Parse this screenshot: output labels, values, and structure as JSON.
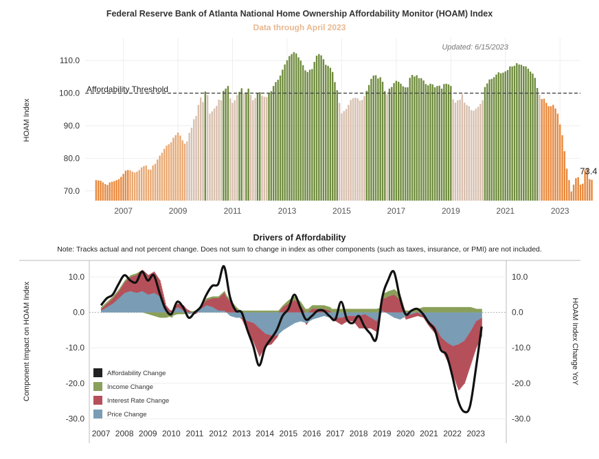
{
  "page": {
    "title": "Federal Reserve Bank of Atlanta National Home Ownership Affordability Monitor (HOAM) Index",
    "subtitle": "Data through April 2023"
  },
  "colors": {
    "title_sub": "#e8b890",
    "affordable_green": "#6e8b3d",
    "unaffordable_tan": "#d7bfae",
    "light_orange": "#e8a872",
    "orange": "#e8873a",
    "income": "#8aa05a",
    "interest": "#b5505a",
    "price": "#7a9cb5",
    "afford_line": "#111111"
  },
  "chart_data": [
    {
      "type": "bar",
      "name": "hoam",
      "note": "Updated: 6/15/2023",
      "ylabel": "HOAM Index",
      "ylim": [
        67,
        117
      ],
      "yticks": [
        70.0,
        80.0,
        90.0,
        100.0,
        110.0
      ],
      "ytick_labels": [
        "70.0",
        "80.0",
        "90.0",
        "100.0",
        "110.0"
      ],
      "x_start": 2006.0,
      "x_step": 0.0833333,
      "x_range": [
        2005.6,
        2023.75
      ],
      "xtick_labels": [
        "2007",
        "2009",
        "2011",
        "2013",
        "2015",
        "2017",
        "2019",
        "2021",
        "2023"
      ],
      "xticks": [
        2007,
        2009,
        2011,
        2013,
        2015,
        2017,
        2019,
        2021,
        2023
      ],
      "threshold": 100.0,
      "threshold_label": "Affordability Threshold",
      "last_value_label": "73.4",
      "values": [
        73.3,
        73.2,
        73.1,
        72.6,
        72.1,
        71.8,
        72.6,
        72.8,
        73.0,
        73.3,
        73.6,
        74.3,
        75.2,
        76.2,
        76.4,
        76.3,
        75.9,
        75.6,
        75.9,
        76.4,
        77.2,
        77.6,
        77.8,
        76.6,
        76.5,
        77.8,
        78.3,
        79.6,
        80.8,
        81.7,
        82.9,
        83.9,
        84.3,
        84.9,
        86.3,
        87.1,
        87.9,
        87.0,
        85.5,
        84.5,
        85.2,
        87.8,
        89.4,
        92.0,
        93.0,
        96.4,
        98.7,
        97.3,
        100.5,
        99.4,
        93.7,
        94.4,
        95.3,
        96.1,
        98.0,
        97.8,
        100.7,
        101.4,
        102.2,
        98.4,
        97.0,
        97.8,
        99.4,
        100.4,
        101.5,
        99.9,
        100.2,
        101.4,
        99.5,
        97.8,
        98.5,
        100.0,
        100.3,
        99.2,
        98.9,
        98.8,
        100.0,
        100.6,
        102.2,
        103.4,
        104.1,
        105.4,
        107.2,
        108.8,
        110.1,
        111.4,
        112.0,
        112.6,
        112.2,
        111.0,
        110.0,
        108.6,
        107.0,
        106.5,
        107.2,
        107.4,
        109.6,
        111.5,
        112.0,
        111.6,
        110.4,
        108.7,
        108.4,
        107.8,
        106.5,
        103.4,
        100.9,
        97.0,
        93.8,
        94.5,
        95.1,
        96.4,
        97.9,
        98.4,
        98.6,
        98.4,
        97.7,
        97.9,
        99.1,
        100.7,
        102.5,
        104.4,
        105.4,
        105.5,
        104.5,
        104.9,
        103.5,
        100.6,
        99.6,
        101.4,
        101.9,
        103.1,
        103.8,
        103.5,
        102.9,
        102.1,
        101.8,
        101.8,
        104.7,
        105.6,
        105.1,
        105.5,
        104.6,
        104.6,
        103.9,
        102.8,
        102.4,
        102.9,
        102.7,
        101.8,
        102.2,
        102.3,
        101.4,
        102.8,
        102.9,
        102.7,
        102.2,
        98.1,
        97.1,
        97.8,
        98.0,
        99.6,
        97.1,
        96.4,
        96.0,
        94.8,
        94.6,
        95.2,
        95.8,
        96.7,
        97.8,
        101.9,
        103.0,
        104.2,
        104.4,
        104.9,
        105.7,
        106.4,
        106.1,
        106.3,
        106.7,
        107.1,
        108.2,
        108.2,
        108.4,
        109.2,
        108.8,
        108.7,
        108.3,
        108.2,
        107.5,
        106.6,
        106.0,
        104.7,
        101.6,
        99.5,
        98.2,
        98.3,
        97.0,
        96.0,
        96.0,
        96.4,
        95.3,
        93.7,
        90.4,
        87.1,
        82.2,
        76.8,
        73.3,
        69.8,
        71.9,
        73.9,
        74.2,
        71.9,
        72.2,
        76.4,
        76.9,
        73.6,
        73.4
      ]
    },
    {
      "type": "area",
      "name": "drivers",
      "title": "Drivers of Affordability",
      "note": "Note: Tracks actual and not percent change. Does not sum to change in index as other components (such as taxes, insurance, or PMI) are not included.",
      "ylabel": "Component Impact on HOAM Index",
      "ylabel_right": "HOAM Index Change YoY",
      "ylim": [
        -30.5,
        13.5
      ],
      "yticks": [
        -30.0,
        -20.0,
        -10.0,
        0.0,
        10.0
      ],
      "ytick_labels": [
        "-30.0",
        "-20.0",
        "-10.0",
        "0.0",
        "10.0"
      ],
      "x_range": [
        2006.5,
        2024.3
      ],
      "xtick_labels": [
        "2007",
        "2008",
        "2009",
        "2010",
        "2011",
        "2012",
        "2013",
        "2014",
        "2015",
        "2016",
        "2017",
        "2018",
        "2019",
        "2020",
        "2021",
        "2022",
        "2023"
      ],
      "xticks": [
        2007,
        2008,
        2009,
        2010,
        2011,
        2012,
        2013,
        2014,
        2015,
        2016,
        2017,
        2018,
        2019,
        2020,
        2021,
        2022,
        2023
      ],
      "legend": [
        {
          "label": "Affordability Change",
          "color": "#222222"
        },
        {
          "label": "Income Change",
          "color": "#8aa05a"
        },
        {
          "label": "Interest Rate Change",
          "color": "#b5505a"
        },
        {
          "label": "Price Change",
          "color": "#7a9cb5"
        }
      ],
      "legend_position": "bottom-left",
      "x": [
        2007.0,
        2007.25,
        2007.5,
        2007.75,
        2008.0,
        2008.25,
        2008.5,
        2008.75,
        2009.0,
        2009.25,
        2009.5,
        2009.75,
        2010.0,
        2010.25,
        2010.5,
        2010.75,
        2011.0,
        2011.25,
        2011.5,
        2011.75,
        2012.0,
        2012.25,
        2012.5,
        2012.75,
        2013.0,
        2013.25,
        2013.5,
        2013.75,
        2014.0,
        2014.25,
        2014.5,
        2014.75,
        2015.0,
        2015.25,
        2015.5,
        2015.75,
        2016.0,
        2016.25,
        2016.5,
        2016.75,
        2017.0,
        2017.25,
        2017.5,
        2017.75,
        2018.0,
        2018.25,
        2018.5,
        2018.75,
        2019.0,
        2019.25,
        2019.5,
        2019.75,
        2020.0,
        2020.25,
        2020.5,
        2020.75,
        2021.0,
        2021.25,
        2021.5,
        2021.75,
        2022.0,
        2022.25,
        2022.5,
        2022.75,
        2023.0,
        2023.25
      ],
      "series": [
        {
          "name": "Price Change",
          "values": [
            0.5,
            1.5,
            2.5,
            4.0,
            5.5,
            6.0,
            5.5,
            6.0,
            5.0,
            5.5,
            4.5,
            1.0,
            -0.5,
            1.5,
            0.5,
            -0.5,
            0.0,
            1.0,
            2.0,
            1.5,
            0.5,
            0.5,
            -1.0,
            -1.5,
            -1.5,
            -2.5,
            -3.0,
            -4.5,
            -6.0,
            -6.5,
            -6.5,
            -5.0,
            -4.0,
            -3.0,
            -2.5,
            -3.0,
            -2.0,
            -1.5,
            -1.0,
            -1.5,
            -1.5,
            -1.5,
            -1.0,
            -1.0,
            -1.0,
            -0.5,
            -1.5,
            -2.5,
            0.5,
            -0.5,
            -1.5,
            -2.0,
            -1.0,
            -0.5,
            0.0,
            -1.0,
            -2.5,
            -4.0,
            -7.0,
            -8.5,
            -9.5,
            -9.0,
            -8.0,
            -5.5,
            -2.5,
            -1.5
          ]
        },
        {
          "name": "Interest Rate Change",
          "values": [
            0.5,
            1.0,
            1.5,
            2.0,
            3.0,
            4.0,
            5.0,
            6.0,
            5.5,
            6.0,
            4.5,
            1.0,
            0.5,
            1.0,
            1.5,
            0.5,
            -0.5,
            0.5,
            1.5,
            2.5,
            3.5,
            5.0,
            3.0,
            1.0,
            -0.5,
            -3.0,
            -5.5,
            -8.0,
            -3.5,
            -2.5,
            -0.5,
            1.5,
            2.5,
            3.5,
            2.0,
            -0.5,
            1.0,
            1.0,
            1.0,
            0.5,
            -1.0,
            -2.0,
            -1.5,
            -1.5,
            -3.5,
            -4.0,
            -3.0,
            -3.0,
            3.5,
            4.5,
            5.0,
            3.5,
            -1.0,
            -1.0,
            -1.0,
            -0.5,
            -1.5,
            -2.0,
            -3.0,
            -5.0,
            -8.0,
            -13.0,
            -12.0,
            -9.5,
            -7.5,
            -5.0
          ]
        },
        {
          "name": "Income Change",
          "values": [
            0.5,
            0.5,
            0.5,
            0.5,
            0.5,
            0.5,
            0.5,
            0.0,
            -0.5,
            -1.0,
            -1.5,
            -1.5,
            -1.0,
            -0.5,
            -0.5,
            0.0,
            0.5,
            0.5,
            0.5,
            0.5,
            0.5,
            0.5,
            0.5,
            0.5,
            0.5,
            0.5,
            0.5,
            0.5,
            0.5,
            0.5,
            0.5,
            0.5,
            1.0,
            1.0,
            1.0,
            1.0,
            1.0,
            1.0,
            1.0,
            1.0,
            1.0,
            1.0,
            1.0,
            1.0,
            1.0,
            1.0,
            1.0,
            1.0,
            1.5,
            1.5,
            1.5,
            1.5,
            0.5,
            0.5,
            1.0,
            1.5,
            1.5,
            1.5,
            1.5,
            1.5,
            1.5,
            1.5,
            1.5,
            1.5,
            1.0,
            1.0
          ]
        },
        {
          "name": "Affordability Change",
          "values": [
            2.0,
            4.0,
            5.0,
            8.0,
            10.5,
            9.0,
            8.5,
            11.5,
            9.0,
            10.5,
            5.5,
            1.0,
            -0.5,
            3.0,
            1.5,
            -1.5,
            0.0,
            1.5,
            5.0,
            7.5,
            8.0,
            13.0,
            4.5,
            0.5,
            0.0,
            -5.0,
            -9.5,
            -15.0,
            -10.0,
            -7.5,
            -5.0,
            -1.0,
            1.0,
            5.0,
            1.5,
            -2.0,
            -1.0,
            0.5,
            0.5,
            -1.0,
            -2.0,
            3.0,
            -2.0,
            -3.0,
            -1.0,
            -4.0,
            -6.0,
            -7.5,
            4.0,
            9.0,
            11.5,
            4.5,
            -0.5,
            0.5,
            1.0,
            -0.5,
            -3.0,
            -5.0,
            -10.5,
            -12.0,
            -18.0,
            -25.0,
            -28.0,
            -26.5,
            -16.0,
            -4.0
          ]
        }
      ]
    }
  ]
}
